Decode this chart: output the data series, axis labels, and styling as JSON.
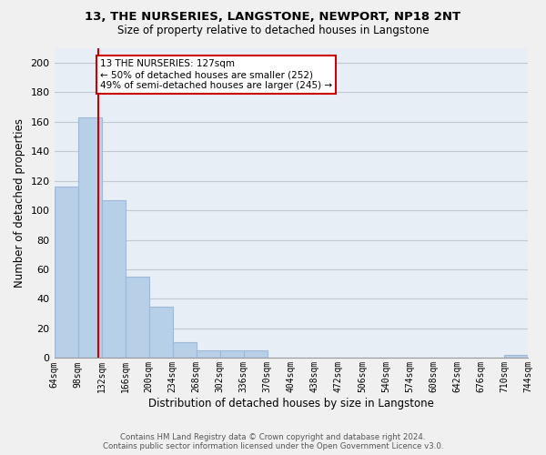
{
  "title": "13, THE NURSERIES, LANGSTONE, NEWPORT, NP18 2NT",
  "subtitle": "Size of property relative to detached houses in Langstone",
  "xlabel": "Distribution of detached houses by size in Langstone",
  "ylabel": "Number of detached properties",
  "bar_color": "#b8cfe8",
  "bar_edge_color": "#a0b8d8",
  "bins": [
    64,
    98,
    132,
    166,
    200,
    234,
    268,
    302,
    336,
    370,
    404,
    438,
    472,
    506,
    540,
    574,
    608,
    642,
    676,
    710,
    744
  ],
  "bar_heights": [
    116,
    163,
    107,
    55,
    35,
    11,
    5,
    5,
    5,
    0,
    0,
    0,
    0,
    0,
    0,
    0,
    0,
    0,
    0,
    2
  ],
  "property_size": 127,
  "vline_color": "#cc0000",
  "annotation_line1": "13 THE NURSERIES: 127sqm",
  "annotation_line2": "← 50% of detached houses are smaller (252)",
  "annotation_line3": "49% of semi-detached houses are larger (245) →",
  "annotation_box_color": "#ffffff",
  "annotation_box_edge_color": "#cc0000",
  "ylim": [
    0,
    210
  ],
  "yticks": [
    0,
    20,
    40,
    60,
    80,
    100,
    120,
    140,
    160,
    180,
    200
  ],
  "tick_labels": [
    "64sqm",
    "98sqm",
    "132sqm",
    "166sqm",
    "200sqm",
    "234sqm",
    "268sqm",
    "302sqm",
    "336sqm",
    "370sqm",
    "404sqm",
    "438sqm",
    "472sqm",
    "506sqm",
    "540sqm",
    "574sqm",
    "608sqm",
    "642sqm",
    "676sqm",
    "710sqm",
    "744sqm"
  ],
  "footer_line1": "Contains HM Land Registry data © Crown copyright and database right 2024.",
  "footer_line2": "Contains public sector information licensed under the Open Government Licence v3.0.",
  "background_color": "#f0f0f0",
  "plot_bg_color": "#e8eef5",
  "grid_color": "#c0c8d0"
}
